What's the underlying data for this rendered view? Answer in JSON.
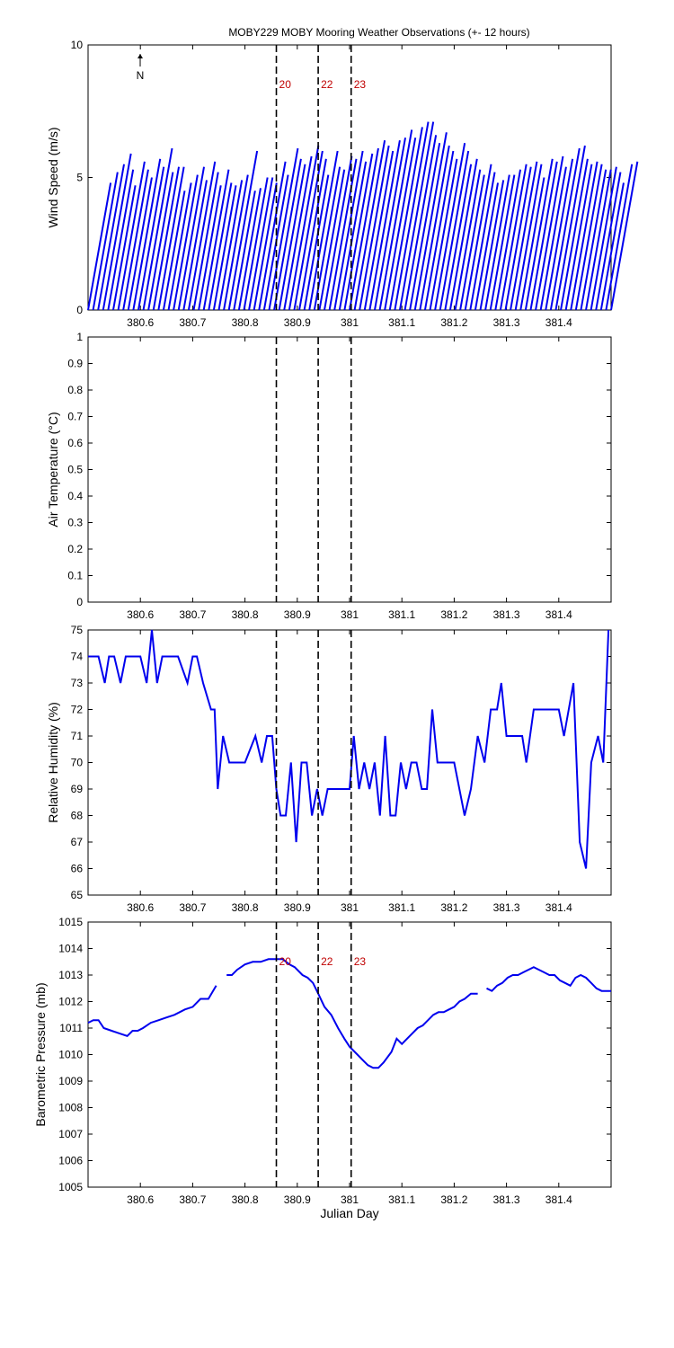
{
  "title": "MOBY229 MOBY Mooring Weather Observations (+- 12 hours)",
  "colors": {
    "series": "#0000ee",
    "markers": "#c00000",
    "axes": "#000000"
  },
  "chart_data": [
    {
      "id": "wind",
      "type": "line",
      "ylabel": "Wind Speed (m/s)",
      "xlim": [
        380.5,
        381.5
      ],
      "ylim": [
        0,
        10
      ],
      "yticks": [
        "0",
        "5",
        "10"
      ],
      "xticks": [
        "380.6",
        "380.7",
        "380.8",
        "380.9",
        "381",
        "381.1",
        "381.2",
        "381.3",
        "381.4"
      ],
      "north_arrow": "N",
      "marker_labels": [
        "20",
        "22",
        "23"
      ],
      "vectors": {
        "time_offset_days": 0.0045,
        "speeds": [
          4.8,
          5.2,
          5.5,
          5.9,
          5.3,
          4.7,
          5.6,
          5.3,
          5.0,
          5.7,
          5.4,
          6.1,
          5.2,
          5.4,
          5.4,
          4.5,
          4.8,
          5.1,
          5.4,
          4.9,
          5.6,
          5.2,
          4.7,
          5.3,
          4.8,
          4.7,
          4.9,
          5.1,
          6.0,
          4.5,
          4.6,
          5.0,
          5.0,
          4.8,
          5.6,
          5.1,
          6.1,
          5.7,
          5.5,
          5.8,
          6.2,
          6.0,
          5.7,
          5.1,
          6.0,
          5.4,
          5.3,
          5.8,
          5.7,
          6.0,
          5.6,
          5.9,
          6.1,
          6.4,
          6.2,
          6.0,
          6.4,
          6.5,
          6.8,
          6.5,
          6.9,
          7.1,
          7.1,
          6.6,
          6.3,
          6.7,
          6.2,
          6.0,
          5.7,
          6.3,
          6.0,
          5.5,
          5.7,
          5.3,
          5.1,
          5.5,
          5.2,
          4.8,
          4.9,
          5.1,
          5.1,
          5.3,
          5.5,
          5.4,
          5.6,
          5.5,
          5.0,
          5.7,
          5.6,
          5.8,
          5.4,
          5.7,
          6.1,
          6.2,
          5.7,
          5.5,
          5.6,
          5.5,
          5.3,
          5.3,
          5.4,
          5.2,
          4.8,
          5.5,
          5.6
        ]
      }
    },
    {
      "id": "air",
      "type": "line",
      "ylabel": "Air Temperature (°C)",
      "xlim": [
        380.5,
        381.5
      ],
      "ylim": [
        0,
        1
      ],
      "yticks": [
        "0",
        "0.1",
        "0.2",
        "0.3",
        "0.4",
        "0.5",
        "0.6",
        "0.7",
        "0.8",
        "0.9",
        "1"
      ],
      "xticks": [
        "380.6",
        "380.7",
        "380.8",
        "380.9",
        "381",
        "381.1",
        "381.2",
        "381.3",
        "381.4"
      ],
      "series": []
    },
    {
      "id": "rh",
      "type": "line",
      "ylabel": "Relative Humidity (%)",
      "xlim": [
        380.5,
        381.5
      ],
      "ylim": [
        65,
        75
      ],
      "yticks": [
        "65",
        "66",
        "67",
        "68",
        "69",
        "70",
        "71",
        "72",
        "73",
        "74",
        "75"
      ],
      "xticks": [
        "380.6",
        "380.7",
        "380.8",
        "380.9",
        "381",
        "381.1",
        "381.2",
        "381.3",
        "381.4"
      ],
      "series": [
        {
          "x": [
            380.5,
            380.52,
            380.532,
            380.54,
            380.55,
            380.562,
            380.572,
            380.585,
            380.6,
            380.612,
            380.622,
            380.632,
            380.642,
            380.652,
            380.672,
            380.69,
            380.7,
            380.708,
            380.72,
            380.735,
            380.742,
            380.748,
            380.758,
            380.77,
            380.8,
            380.82,
            380.832,
            380.842,
            380.852,
            380.86,
            380.868,
            380.878,
            380.888,
            380.898,
            380.908,
            380.918,
            380.928,
            380.938,
            380.948,
            380.958,
            380.968,
            380.978,
            381.0,
            381.008,
            381.018,
            381.028,
            381.038,
            381.048,
            381.058,
            381.068,
            381.078,
            381.088,
            381.098,
            381.108,
            381.118,
            381.128,
            381.138,
            381.148,
            381.158,
            381.168,
            381.2,
            381.22,
            381.232,
            381.245,
            381.258,
            381.27,
            381.282,
            381.29,
            381.3,
            381.31,
            381.33,
            381.338,
            381.352,
            381.4,
            381.41,
            381.428,
            381.44,
            381.452,
            381.462,
            381.475,
            381.485,
            381.495
          ],
          "y": [
            74,
            74,
            73,
            74,
            74,
            73,
            74,
            74,
            74,
            73,
            75,
            73,
            74,
            74,
            74,
            73,
            74,
            74,
            73,
            72,
            72,
            69,
            71,
            70,
            70,
            71,
            70,
            71,
            71,
            69,
            68,
            68,
            70,
            67,
            70,
            70,
            68,
            69,
            68,
            69,
            69,
            69,
            69,
            71,
            69,
            70,
            69,
            70,
            68,
            71,
            68,
            68,
            70,
            69,
            70,
            70,
            69,
            69,
            72,
            70,
            70,
            68,
            69,
            71,
            70,
            72,
            72,
            73,
            71,
            71,
            71,
            70,
            72,
            72,
            71,
            73,
            67,
            66,
            70,
            71,
            70,
            75
          ]
        }
      ]
    },
    {
      "id": "bp",
      "type": "line",
      "ylabel": "Barometric Pressure (mb)",
      "xlabel": "Julian Day",
      "xlim": [
        380.5,
        381.5
      ],
      "ylim": [
        1005,
        1015
      ],
      "yticks": [
        "1005",
        "1006",
        "1007",
        "1008",
        "1009",
        "1010",
        "1011",
        "1012",
        "1013",
        "1014",
        "1015"
      ],
      "xticks": [
        "380.6",
        "380.7",
        "380.8",
        "380.9",
        "381",
        "381.1",
        "381.2",
        "381.3",
        "381.4"
      ],
      "marker_labels": [
        "20",
        "22",
        "23"
      ],
      "series": [
        {
          "segments": [
            {
              "x": [
                380.5,
                380.51,
                380.52,
                380.53,
                380.545,
                380.56,
                380.575,
                380.585,
                380.595,
                380.605,
                380.62,
                380.635,
                380.65,
                380.665,
                380.675,
                380.685,
                380.7,
                380.715,
                380.73,
                380.745
              ],
              "y": [
                1011.2,
                1011.3,
                1011.3,
                1011.0,
                1010.9,
                1010.8,
                1010.7,
                1010.9,
                1010.9,
                1011.0,
                1011.2,
                1011.3,
                1011.4,
                1011.5,
                1011.6,
                1011.7,
                1011.8,
                1012.1,
                1012.1,
                1012.6
              ]
            },
            {
              "x": [
                380.765,
                380.775,
                380.785,
                380.8,
                380.815,
                380.83,
                380.845,
                380.86,
                380.872,
                380.885,
                380.895,
                380.91,
                380.92,
                380.93,
                380.94,
                380.952,
                380.965,
                380.978,
                380.99,
                381.0,
                381.015,
                381.025,
                381.035,
                381.045,
                381.055,
                381.065,
                381.08,
                381.09,
                381.1,
                381.11,
                381.12,
                381.13,
                381.14,
                381.15,
                381.16,
                381.17,
                381.18,
                381.19,
                381.2,
                381.21,
                381.22,
                381.232,
                381.245
              ],
              "y": [
                1013.0,
                1013.0,
                1013.2,
                1013.4,
                1013.5,
                1013.5,
                1013.6,
                1013.6,
                1013.6,
                1013.4,
                1013.3,
                1013.0,
                1012.9,
                1012.7,
                1012.3,
                1011.8,
                1011.5,
                1011.0,
                1010.6,
                1010.3,
                1010.0,
                1009.8,
                1009.6,
                1009.5,
                1009.5,
                1009.7,
                1010.1,
                1010.6,
                1010.4,
                1010.6,
                1010.8,
                1011.0,
                1011.1,
                1011.3,
                1011.5,
                1011.6,
                1011.6,
                1011.7,
                1011.8,
                1012.0,
                1012.1,
                1012.3,
                1012.3
              ]
            },
            {
              "x": [
                381.262,
                381.272,
                381.282,
                381.292,
                381.302,
                381.312,
                381.322,
                381.332,
                381.342,
                381.352,
                381.362,
                381.372,
                381.382,
                381.392,
                381.402,
                381.412,
                381.422,
                381.432,
                381.442,
                381.452,
                381.462,
                381.472,
                381.482,
                381.5
              ],
              "y": [
                1012.5,
                1012.4,
                1012.6,
                1012.7,
                1012.9,
                1013.0,
                1013.0,
                1013.1,
                1013.2,
                1013.3,
                1013.2,
                1013.1,
                1013.0,
                1013.0,
                1012.8,
                1012.7,
                1012.6,
                1012.9,
                1013.0,
                1012.9,
                1012.7,
                1012.5,
                1012.4,
                1012.4
              ]
            }
          ]
        }
      ]
    }
  ]
}
